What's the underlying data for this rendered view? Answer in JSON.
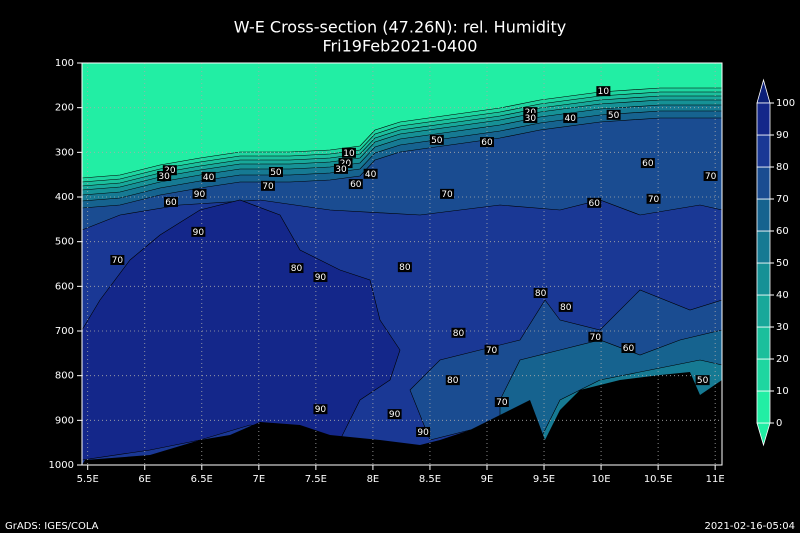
{
  "chart_data": {
    "type": "contour",
    "title": "W-E Cross-section (47.26N): rel. Humidity",
    "subtitle": "Fri19Feb2021-0400",
    "xlim": [
      5.45,
      11.06
    ],
    "xticks": [
      {
        "value": 5.5,
        "label": "5.5E"
      },
      {
        "value": 6,
        "label": "6E"
      },
      {
        "value": 6.5,
        "label": "6.5E"
      },
      {
        "value": 7,
        "label": "7E"
      },
      {
        "value": 7.5,
        "label": "7.5E"
      },
      {
        "value": 8,
        "label": "8E"
      },
      {
        "value": 8.5,
        "label": "8.5E"
      },
      {
        "value": 9,
        "label": "9E"
      },
      {
        "value": 9.5,
        "label": "9.5E"
      },
      {
        "value": 10,
        "label": "10E"
      },
      {
        "value": 10.5,
        "label": "10.5E"
      },
      {
        "value": 11,
        "label": "11E"
      }
    ],
    "ylim": [
      1000,
      100
    ],
    "yticks": [
      100,
      200,
      300,
      400,
      500,
      600,
      700,
      800,
      900,
      1000
    ],
    "grid": true,
    "colorbar": {
      "lim": [
        0,
        100
      ],
      "ticks": [
        0,
        10,
        20,
        30,
        40,
        50,
        60,
        70,
        80,
        90,
        100
      ],
      "colors": [
        "#22eea4",
        "#22eea4",
        "#1ed6a0",
        "#1bbf9c",
        "#18a89a",
        "#169196",
        "#167a93",
        "#16638f",
        "#1a4c91",
        "#1a3895",
        "#14278a",
        "#0b1f78"
      ]
    },
    "contour_labels": [
      {
        "value": 10,
        "x": 10.02,
        "p": 163
      },
      {
        "value": 20,
        "x": 9.38,
        "p": 210
      },
      {
        "value": 30,
        "x": 9.38,
        "p": 223
      },
      {
        "value": 40,
        "x": 9.73,
        "p": 223
      },
      {
        "value": 50,
        "x": 10.11,
        "p": 216
      },
      {
        "value": 50,
        "x": 8.56,
        "p": 272
      },
      {
        "value": 60,
        "x": 9.0,
        "p": 277
      },
      {
        "value": 10,
        "x": 7.79,
        "p": 301
      },
      {
        "value": 20,
        "x": 7.76,
        "p": 324
      },
      {
        "value": 30,
        "x": 7.72,
        "p": 337
      },
      {
        "value": 40,
        "x": 7.98,
        "p": 348
      },
      {
        "value": 60,
        "x": 7.85,
        "p": 371
      },
      {
        "value": 50,
        "x": 7.15,
        "p": 344
      },
      {
        "value": 70,
        "x": 7.08,
        "p": 375
      },
      {
        "value": 20,
        "x": 6.22,
        "p": 340
      },
      {
        "value": 30,
        "x": 6.17,
        "p": 353
      },
      {
        "value": 40,
        "x": 6.56,
        "p": 355
      },
      {
        "value": 60,
        "x": 6.23,
        "p": 411
      },
      {
        "value": 90,
        "x": 6.48,
        "p": 393
      },
      {
        "value": 90,
        "x": 6.47,
        "p": 478
      },
      {
        "value": 70,
        "x": 5.76,
        "p": 541
      },
      {
        "value": 80,
        "x": 7.33,
        "p": 559
      },
      {
        "value": 90,
        "x": 7.54,
        "p": 579
      },
      {
        "value": 80,
        "x": 8.28,
        "p": 557
      },
      {
        "value": 70,
        "x": 8.65,
        "p": 393
      },
      {
        "value": 60,
        "x": 9.94,
        "p": 413
      },
      {
        "value": 70,
        "x": 10.46,
        "p": 404
      },
      {
        "value": 60,
        "x": 10.41,
        "p": 324
      },
      {
        "value": 70,
        "x": 10.96,
        "p": 353
      },
      {
        "value": 80,
        "x": 9.47,
        "p": 615
      },
      {
        "value": 80,
        "x": 9.69,
        "p": 646
      },
      {
        "value": 80,
        "x": 8.75,
        "p": 704
      },
      {
        "value": 70,
        "x": 9.04,
        "p": 742
      },
      {
        "value": 70,
        "x": 9.95,
        "p": 713
      },
      {
        "value": 60,
        "x": 10.24,
        "p": 738
      },
      {
        "value": 80,
        "x": 8.7,
        "p": 810
      },
      {
        "value": 50,
        "x": 10.89,
        "p": 810
      },
      {
        "value": 90,
        "x": 7.54,
        "p": 875
      },
      {
        "value": 90,
        "x": 8.19,
        "p": 886
      },
      {
        "value": 70,
        "x": 9.13,
        "p": 859
      },
      {
        "value": 90,
        "x": 8.44,
        "p": 926
      }
    ],
    "footer_left": "GrADS: IGES/COLA",
    "footer_right": "2021-02-16-05:04"
  }
}
